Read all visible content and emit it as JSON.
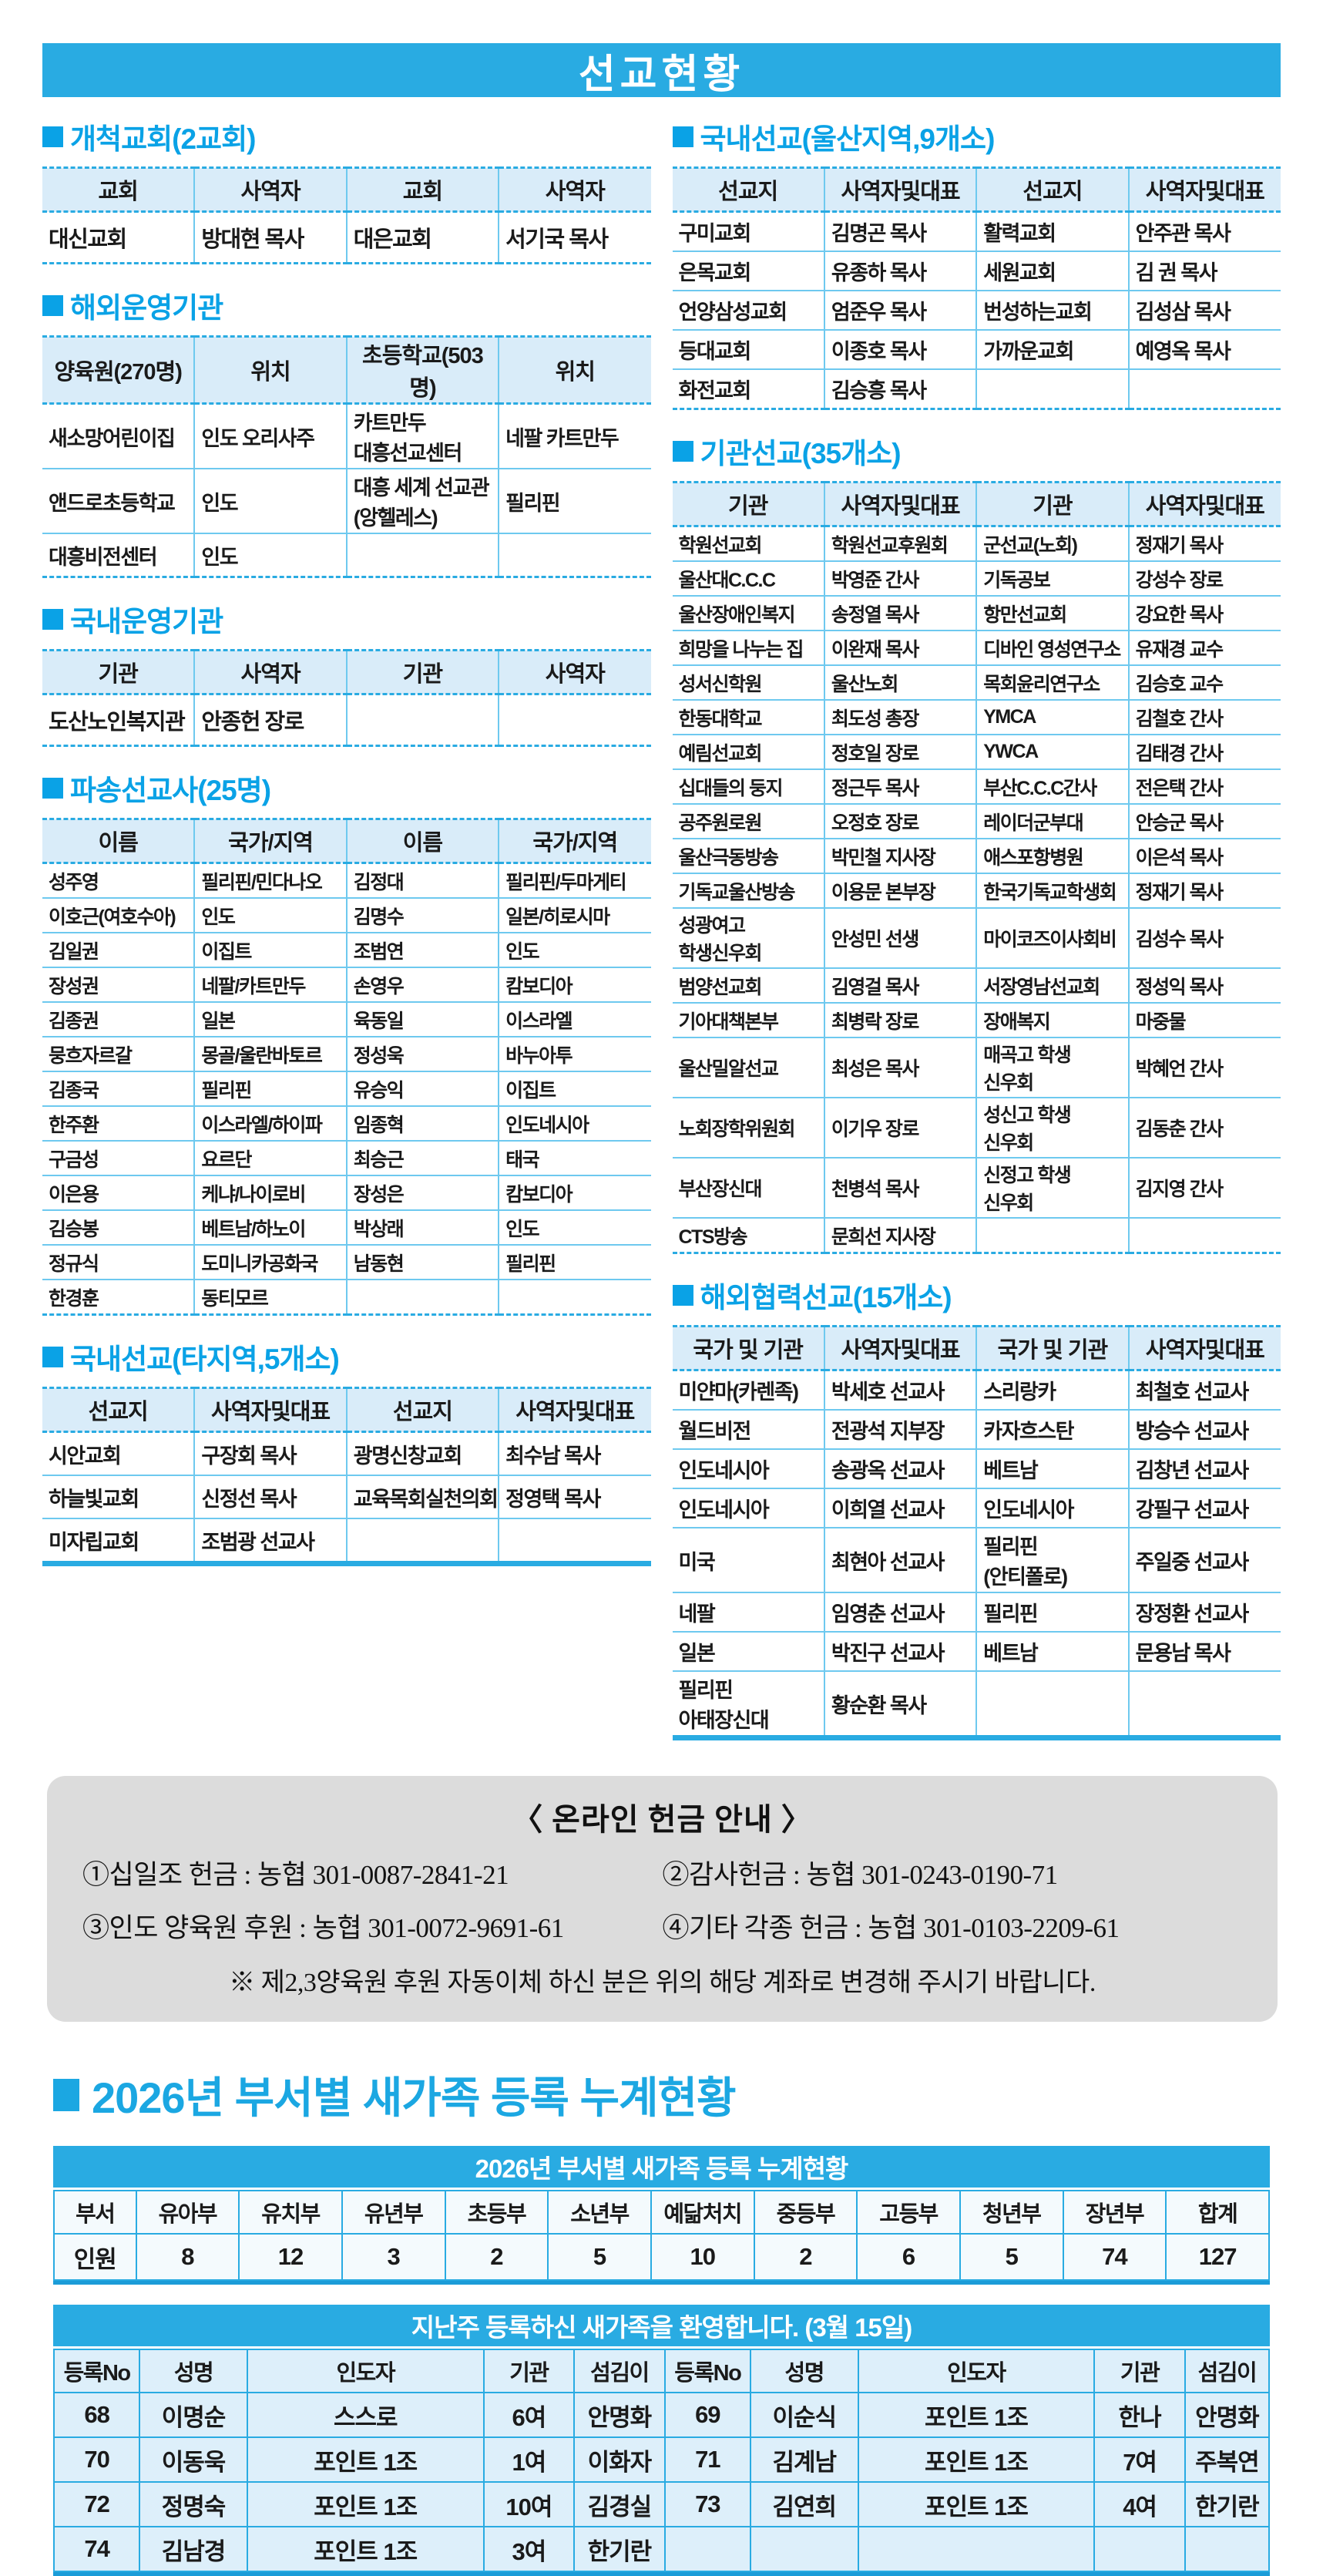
{
  "page": {
    "title": "선교현황"
  },
  "colors": {
    "accent": "#29ABE2",
    "section_title": "#0AA2E6",
    "header_bg": "#D9ECF9",
    "cell_bg_light": "#DDEFFA",
    "box_gray": "#DCDCDC"
  },
  "sections": {
    "pioneer": {
      "title": "개척교회(2교회)",
      "headers": [
        "교회",
        "사역자",
        "교회",
        "사역자"
      ],
      "rows": [
        [
          "대신교회",
          "방대현 목사",
          "대은교회",
          "서기국 목사"
        ]
      ]
    },
    "overseas_org": {
      "title": "해외운영기관",
      "headers": [
        "양육원(270명)",
        "위치",
        "초등학교(503명)",
        "위치"
      ],
      "rows": [
        [
          "새소망어린이집",
          "인도 오리사주",
          "카트만두 대흥선교센터",
          "네팔 카트만두"
        ],
        [
          "앤드로초등학교",
          "인도",
          "대흥 세계 선교관(앙헬레스)",
          "필리핀"
        ],
        [
          "대흥비전센터",
          "인도",
          "",
          ""
        ]
      ]
    },
    "domestic_org": {
      "title": "국내운영기관",
      "headers": [
        "기관",
        "사역자",
        "기관",
        "사역자"
      ],
      "rows": [
        [
          "도산노인복지관",
          "안종헌 장로",
          "",
          ""
        ]
      ]
    },
    "missionaries": {
      "title": "파송선교사(25명)",
      "headers": [
        "이름",
        "국가/지역",
        "이름",
        "국가/지역"
      ],
      "rows": [
        [
          "성주영",
          "필리핀/민다나오",
          "김정대",
          "필리핀/두마게티"
        ],
        [
          "이호근(여호수아)",
          "인도",
          "김명수",
          "일본/히로시마"
        ],
        [
          "김일권",
          "이집트",
          "조범연",
          "인도"
        ],
        [
          "장성권",
          "네팔/카트만두",
          "손영우",
          "캄보디아"
        ],
        [
          "김종권",
          "일본",
          "육동일",
          "이스라엘"
        ],
        [
          "뭉흐자르갈",
          "몽골/울란바토르",
          "정성욱",
          "바누아투"
        ],
        [
          "김종국",
          "필리핀",
          "유승익",
          "이집트"
        ],
        [
          "한주환",
          "이스라엘/하이파",
          "임종혁",
          "인도네시아"
        ],
        [
          "구금성",
          "요르단",
          "최승근",
          "태국"
        ],
        [
          "이은용",
          "케냐/나이로비",
          "장성은",
          "캄보디아"
        ],
        [
          "김승봉",
          "베트남/하노이",
          "박상래",
          "인도"
        ],
        [
          "정규식",
          "도미니카공화국",
          "남동현",
          "필리핀"
        ],
        [
          "한경훈",
          "동티모르",
          "",
          ""
        ]
      ]
    },
    "domestic_other": {
      "title": "국내선교(타지역,5개소)",
      "headers": [
        "선교지",
        "사역자및대표",
        "선교지",
        "사역자및대표"
      ],
      "rows": [
        [
          "시안교회",
          "구장회 목사",
          "광명신창교회",
          "최수남 목사"
        ],
        [
          "하늘빛교회",
          "신정선 목사",
          "교육목회실천의회",
          "정영택 목사"
        ],
        [
          "미자립교회",
          "조범광 선교사",
          "",
          ""
        ]
      ]
    },
    "ulsan": {
      "title": "국내선교(울산지역,9개소)",
      "headers": [
        "선교지",
        "사역자및대표",
        "선교지",
        "사역자및대표"
      ],
      "rows": [
        [
          "구미교회",
          "김명곤 목사",
          "활력교회",
          "안주관 목사"
        ],
        [
          "은목교회",
          "유종하 목사",
          "세원교회",
          "김 권 목사"
        ],
        [
          "언양삼성교회",
          "엄준우 목사",
          "번성하는교회",
          "김성삼 목사"
        ],
        [
          "등대교회",
          "이종호 목사",
          "가까운교회",
          "예영옥 목사"
        ],
        [
          "화전교회",
          "김승흥 목사",
          "",
          ""
        ]
      ]
    },
    "agency": {
      "title": "기관선교(35개소)",
      "headers": [
        "기관",
        "사역자및대표",
        "기관",
        "사역자및대표"
      ],
      "rows": [
        [
          "학원선교회",
          "학원선교후원회",
          "군선교(노회)",
          "정재기 목사"
        ],
        [
          "울산대C.C.C",
          "박영준 간사",
          "기독공보",
          "강성수 장로"
        ],
        [
          "울산장애인복지",
          "송정열 목사",
          "항만선교회",
          "강요한 목사"
        ],
        [
          "희망을 나누는 집",
          "이완재 목사",
          "디바인 영성연구소",
          "유재경 교수"
        ],
        [
          "성서신학원",
          "울산노회",
          "목회윤리연구소",
          "김승호 교수"
        ],
        [
          "한동대학교",
          "최도성 총장",
          "YMCA",
          "김철호 간사"
        ],
        [
          "예림선교회",
          "정호일 장로",
          "YWCA",
          "김태경 간사"
        ],
        [
          "십대들의 둥지",
          "정근두 목사",
          "부산C.C.C간사",
          "전은택 간사"
        ],
        [
          "공주원로원",
          "오정호 장로",
          "레이더군부대",
          "안승군 목사"
        ],
        [
          "울산극동방송",
          "박민철 지사장",
          "애스포항병원",
          "이은석 목사"
        ],
        [
          "기독교울산방송",
          "이용문 본부장",
          "한국기독교학생회",
          "정재기 목사"
        ],
        [
          "성광여고 학생신우회",
          "안성민 선생",
          "마이코즈이사회비",
          "김성수 목사"
        ],
        [
          "범양선교회",
          "김영걸 목사",
          "서장영남선교회",
          "정성익 목사"
        ],
        [
          "기아대책본부",
          "최병락 장로",
          "장애복지",
          "마중물"
        ],
        [
          "울산밀알선교",
          "최성은 목사",
          "매곡고 학생 신우회",
          "박혜언 간사"
        ],
        [
          "노회장학위원회",
          "이기우 장로",
          "성신고 학생 신우회",
          "김동춘 간사"
        ],
        [
          "부산장신대",
          "천병석 목사",
          "신정고 학생 신우회",
          "김지영 간사"
        ],
        [
          "CTS방송",
          "문희선 지사장",
          "",
          ""
        ]
      ]
    },
    "overseas_coop": {
      "title": "해외협력선교(15개소)",
      "headers": [
        "국가 및 기관",
        "사역자및대표",
        "국가 및 기관",
        "사역자및대표"
      ],
      "rows": [
        [
          "미얀마(카렌족)",
          "박세호 선교사",
          "스리랑카",
          "최철호 선교사"
        ],
        [
          "월드비전",
          "전광석 지부장",
          "카자흐스탄",
          "방승수 선교사"
        ],
        [
          "인도네시아",
          "송광옥 선교사",
          "베트남",
          "김창년 선교사"
        ],
        [
          "인도네시아",
          "이희열 선교사",
          "인도네시아",
          "강필구 선교사"
        ],
        [
          "미국",
          "최현아 선교사",
          "필리핀 (안티폴로)",
          "주일중 선교사"
        ],
        [
          "네팔",
          "임영춘 선교사",
          "필리핀",
          "장정환 선교사"
        ],
        [
          "일본",
          "박진구 선교사",
          "베트남",
          "문용남 목사"
        ],
        [
          "필리핀 아태장신대",
          "황순환 목사",
          "",
          ""
        ]
      ]
    }
  },
  "donation": {
    "title": "〈 온라인 헌금 안내 〉",
    "lines": [
      [
        "①십일조 헌금 : 농협 301-0087-2841-21",
        "②감사헌금 : 농협 301-0243-0190-71"
      ],
      [
        "③인도 양육원 후원 : 농협 301-0072-9691-61",
        "④기타 각종 헌금 : 농협 301-0103-2209-61"
      ]
    ],
    "note": "※ 제2,3양육원 후원 자동이체 하신 분은 위의 해당 계좌로 변경해 주시기 바랍니다."
  },
  "newcomers": {
    "section_title": "2026년 부서별 새가족 등록 누계현황",
    "summary": {
      "table_title": "2026년 부서별 새가족 등록 누계현황",
      "headers": [
        "부서",
        "유아부",
        "유치부",
        "유년부",
        "초등부",
        "소년부",
        "예닮처치",
        "중등부",
        "고등부",
        "청년부",
        "장년부",
        "합계"
      ],
      "rows": [
        [
          "인원",
          "8",
          "12",
          "3",
          "2",
          "5",
          "10",
          "2",
          "6",
          "5",
          "74",
          "127"
        ]
      ]
    },
    "welcome": {
      "table_title": "지난주 등록하신 새가족을 환영합니다. (3월 15일)",
      "headers": [
        "등록No",
        "성명",
        "인도자",
        "기관",
        "섬김이",
        "등록No",
        "성명",
        "인도자",
        "기관",
        "섬김이"
      ],
      "rows": [
        [
          "68",
          "이명순",
          "스스로",
          "6여",
          "안명화",
          "69",
          "이순식",
          "포인트 1조",
          "한나",
          "안명화"
        ],
        [
          "70",
          "이동욱",
          "포인트 1조",
          "1여",
          "이화자",
          "71",
          "김계남",
          "포인트 1조",
          "7여",
          "주복연"
        ],
        [
          "72",
          "정명숙",
          "포인트 1조",
          "10여",
          "김경실",
          "73",
          "김연희",
          "포인트 1조",
          "4여",
          "한기란"
        ],
        [
          "74",
          "김남경",
          "포인트 1조",
          "3여",
          "한기란",
          "",
          "",
          "",
          "",
          ""
        ]
      ]
    }
  }
}
